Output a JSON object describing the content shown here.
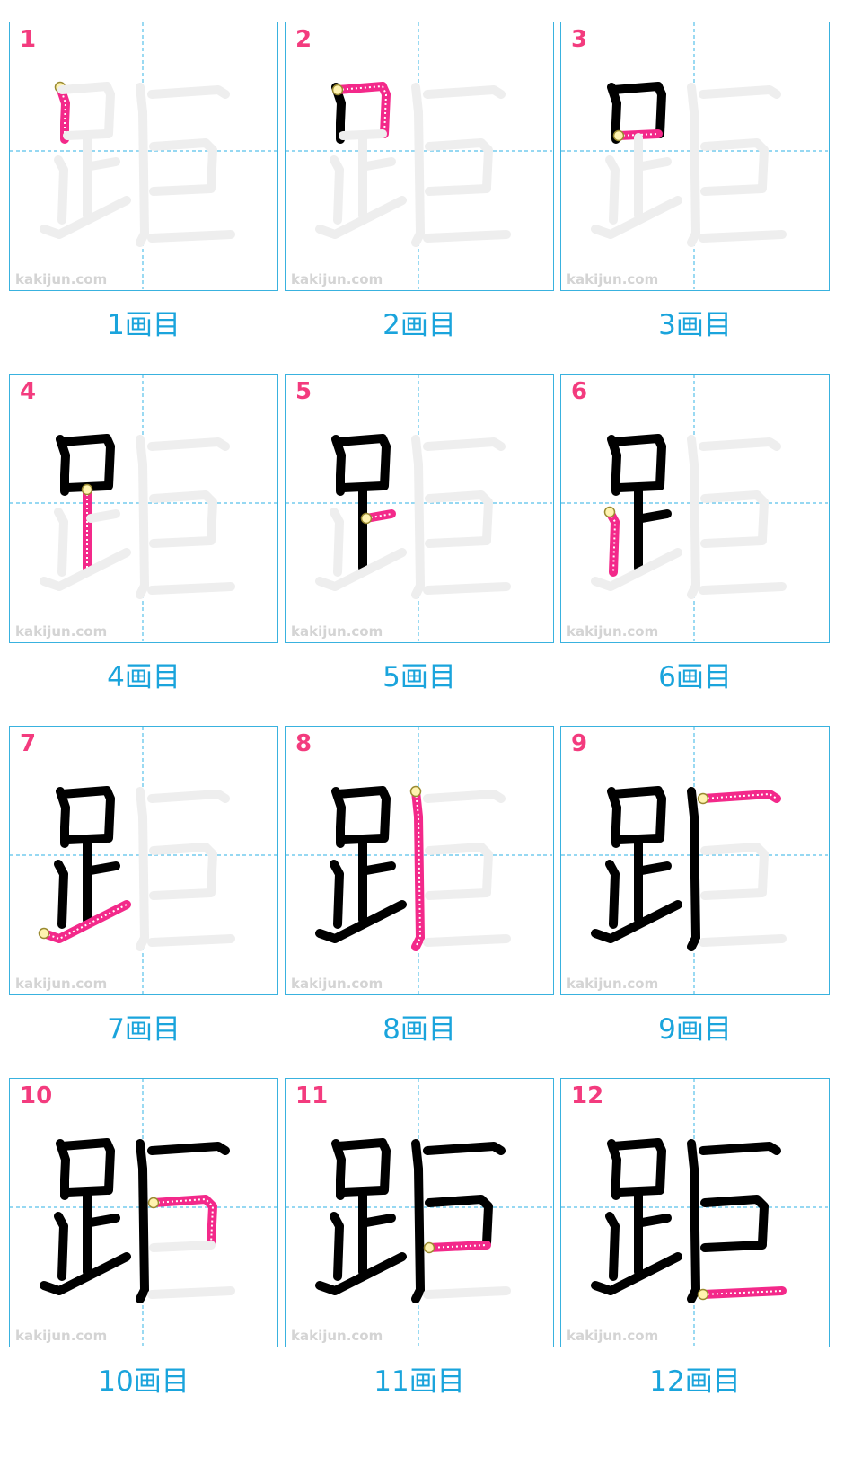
{
  "watermark": "kakijun.com",
  "colors": {
    "grid_border": "#39b2df",
    "guide_dash": "#58c0ea",
    "current_stroke": "#f3298a",
    "done_stroke": "#000000",
    "ghost_stroke": "#eeeeee",
    "step_number": "#f33b7e",
    "caption": "#1aa4dc"
  },
  "panels": [
    {
      "number": "1",
      "caption": "1画目"
    },
    {
      "number": "2",
      "caption": "2画目"
    },
    {
      "number": "3",
      "caption": "3画目"
    },
    {
      "number": "4",
      "caption": "4画目"
    },
    {
      "number": "5",
      "caption": "5画目"
    },
    {
      "number": "6",
      "caption": "6画目"
    },
    {
      "number": "7",
      "caption": "7画目"
    },
    {
      "number": "8",
      "caption": "8画目"
    },
    {
      "number": "9",
      "caption": "9画目"
    },
    {
      "number": "10",
      "caption": "10画目"
    },
    {
      "number": "11",
      "caption": "11画目"
    },
    {
      "number": "12",
      "caption": "12画目"
    }
  ]
}
